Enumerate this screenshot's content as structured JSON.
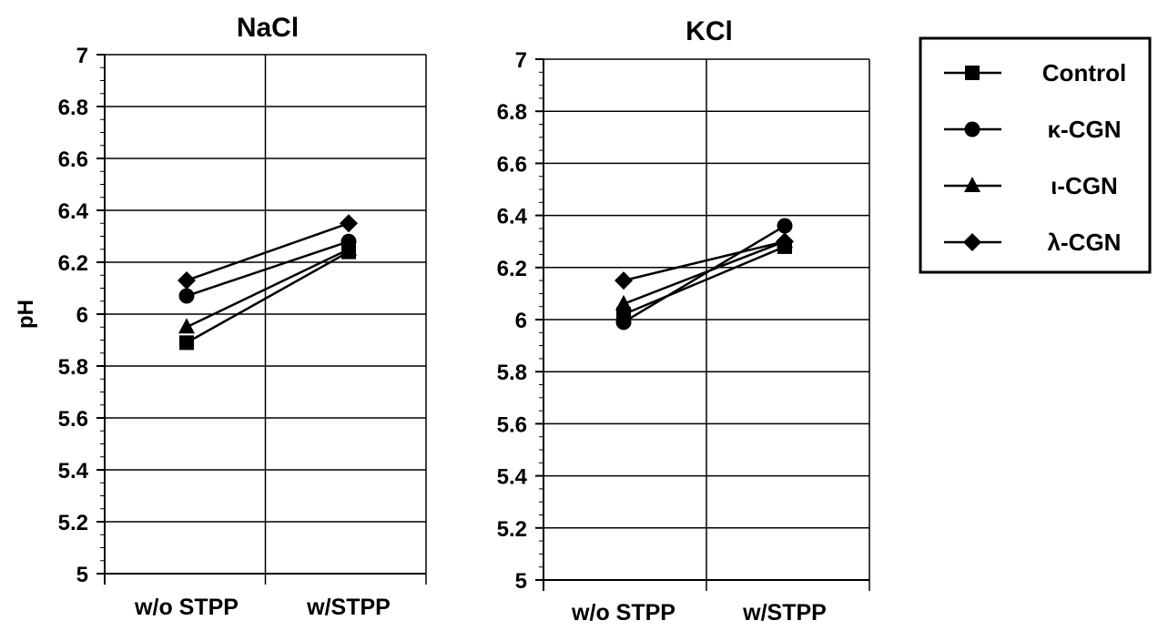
{
  "chart_data": [
    {
      "type": "line",
      "title": "NaCl",
      "ylabel": "pH",
      "xlabel": "",
      "categories": [
        "w/o STPP",
        "w/STPP"
      ],
      "ylim": [
        5,
        7
      ],
      "yticks": [
        "5",
        "5.2",
        "5.4",
        "5.6",
        "5.8",
        "6",
        "6.2",
        "6.4",
        "6.6",
        "6.8",
        "7"
      ],
      "grid": true,
      "series": [
        {
          "name": "Control",
          "values": [
            5.89,
            6.24
          ]
        },
        {
          "name": "κ-CGN",
          "values": [
            6.07,
            6.28
          ]
        },
        {
          "name": "ι-CGN",
          "values": [
            5.95,
            6.25
          ]
        },
        {
          "name": "λ-CGN",
          "values": [
            6.13,
            6.35
          ]
        }
      ]
    },
    {
      "type": "line",
      "title": "KCl",
      "ylabel": "",
      "xlabel": "",
      "categories": [
        "w/o STPP",
        "w/STPP"
      ],
      "ylim": [
        5,
        7
      ],
      "yticks": [
        "5",
        "5.2",
        "5.4",
        "5.6",
        "5.8",
        "6",
        "6.2",
        "6.4",
        "6.6",
        "6.8",
        "7"
      ],
      "grid": true,
      "series": [
        {
          "name": "Control",
          "values": [
            6.02,
            6.28
          ]
        },
        {
          "name": "κ-CGN",
          "values": [
            5.99,
            6.36
          ]
        },
        {
          "name": "ι-CGN",
          "values": [
            6.06,
            6.3
          ]
        },
        {
          "name": "λ-CGN",
          "values": [
            6.15,
            6.3
          ]
        }
      ]
    }
  ],
  "legend": {
    "position": "right",
    "items": [
      {
        "label": "Control",
        "marker": "square"
      },
      {
        "label": "κ-CGN",
        "marker": "circle"
      },
      {
        "label": "ι-CGN",
        "marker": "triangle"
      },
      {
        "label": "λ-CGN",
        "marker": "diamond"
      }
    ]
  },
  "colors": {
    "ink": "#000000",
    "background": "#ffffff"
  }
}
